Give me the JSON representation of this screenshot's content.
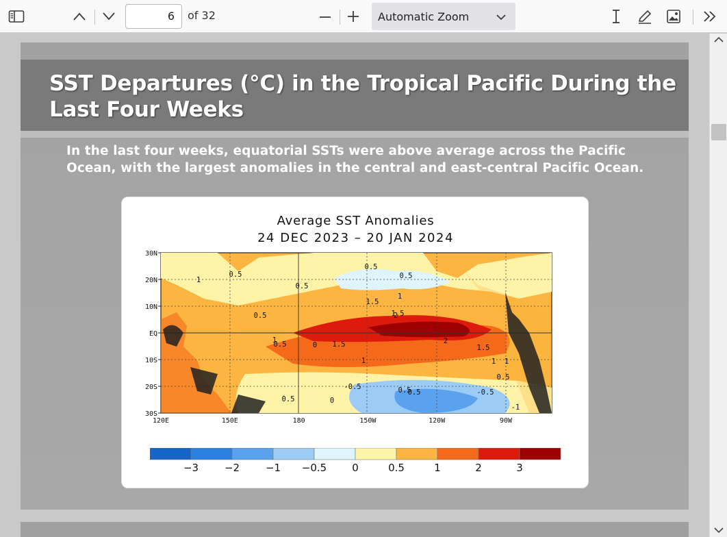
{
  "toolbar": {
    "page_number": "6",
    "page_count_label": "of 32",
    "zoom_label": "Automatic Zoom"
  },
  "slide": {
    "title": "SST Departures (°C) in the Tropical Pacific During the Last Four Weeks",
    "body": "In the last four weeks, equatorial SSTs were above average across the Pacific Ocean, with the largest anomalies in the central and east-central Pacific Ocean."
  },
  "map": {
    "title_line1": "Average SST Anomalies",
    "title_line2": "24 DEC 2023 – 20 JAN 2024",
    "lat_labels": [
      "30N",
      "20N",
      "10N",
      "EQ",
      "10S",
      "20S",
      "30S"
    ],
    "lon_labels": [
      "120E",
      "150E",
      "180",
      "150W",
      "120W",
      "90W"
    ],
    "contour_labels": [
      "1",
      "0.5",
      "0.5",
      "0.5",
      "0",
      "0.5",
      "1",
      "1.5",
      "2",
      "1.5",
      "1",
      "2",
      "0.5",
      "1",
      "1.5",
      "1.5",
      "1",
      "1",
      "0.5",
      "0.5",
      "0.5",
      "0.5",
      "-0.5",
      "0.5",
      "-0.5",
      "-1",
      "0"
    ],
    "colorbar_labels": [
      "−3",
      "−2",
      "−1",
      "−0.5",
      "0",
      "0.5",
      "1",
      "2",
      "3"
    ],
    "colorbar_colors": [
      "#1565c8",
      "#2b80e0",
      "#5aa2ee",
      "#9cccf6",
      "#dff5fd",
      "#fff3a8",
      "#fbb540",
      "#f5691a",
      "#de1a0c",
      "#9e0000"
    ]
  }
}
